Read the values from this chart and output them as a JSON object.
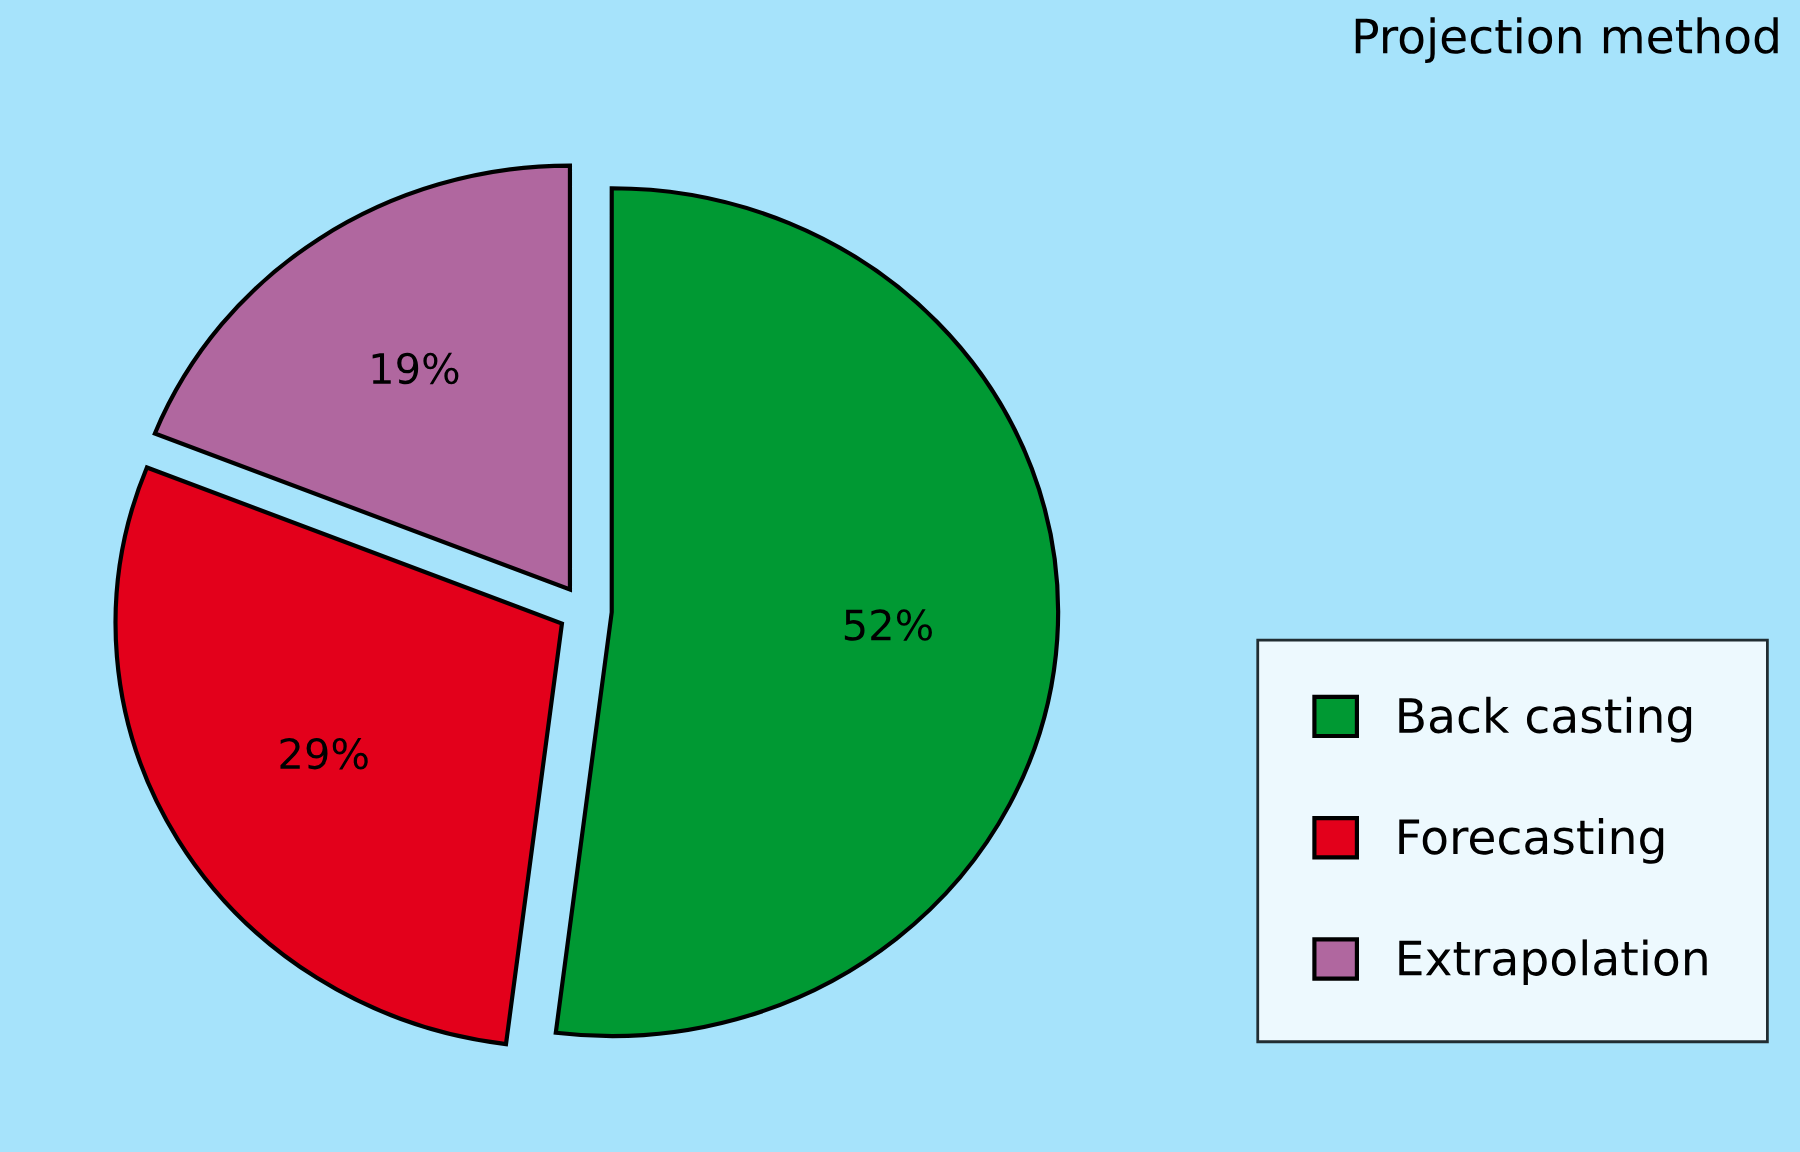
{
  "chart_data": {
    "type": "pie",
    "title": "Projection method",
    "categories": [
      "Back casting",
      "Forecasting",
      "Extrapolation"
    ],
    "values": [
      52,
      29,
      19
    ],
    "colors": [
      "#009933",
      "#e3001b",
      "#b0679f"
    ],
    "value_labels": [
      "52%",
      "29%",
      "19%"
    ],
    "legend": "right"
  }
}
